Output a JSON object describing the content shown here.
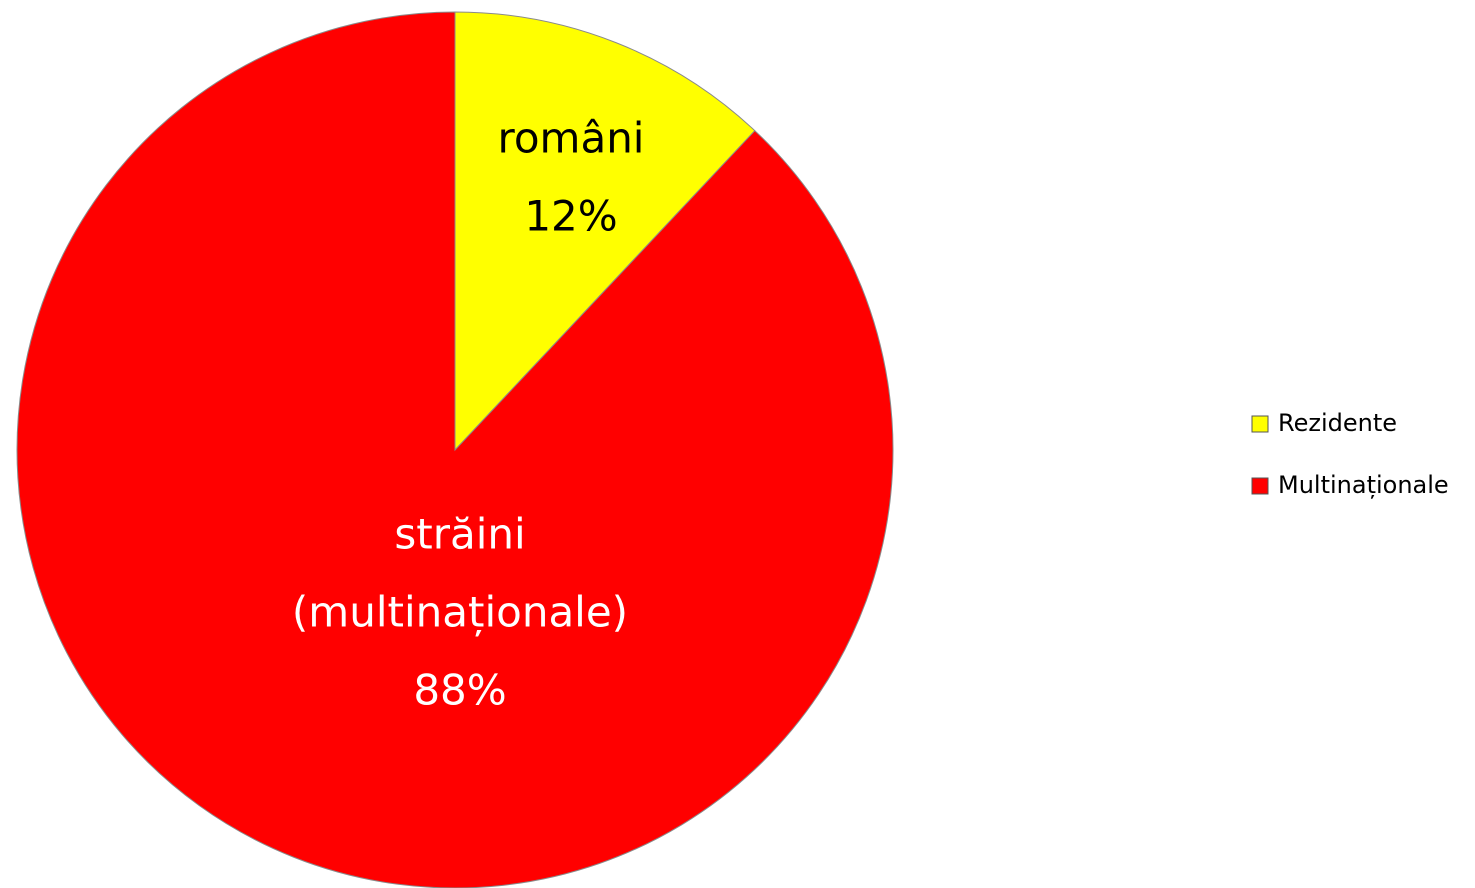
{
  "chart_data": {
    "type": "pie",
    "categories": [
      "Rezidente",
      "Multinaționale"
    ],
    "values": [
      12,
      88
    ],
    "value_labels": [
      "12%",
      "88%"
    ],
    "slice_labels": [
      [
        "români"
      ],
      [
        "străini",
        "(multinaționale)"
      ]
    ],
    "colors": [
      "#ffff00",
      "#ff0000"
    ],
    "label_colors": [
      "#000000",
      "#ffffff"
    ],
    "legend": "right"
  }
}
